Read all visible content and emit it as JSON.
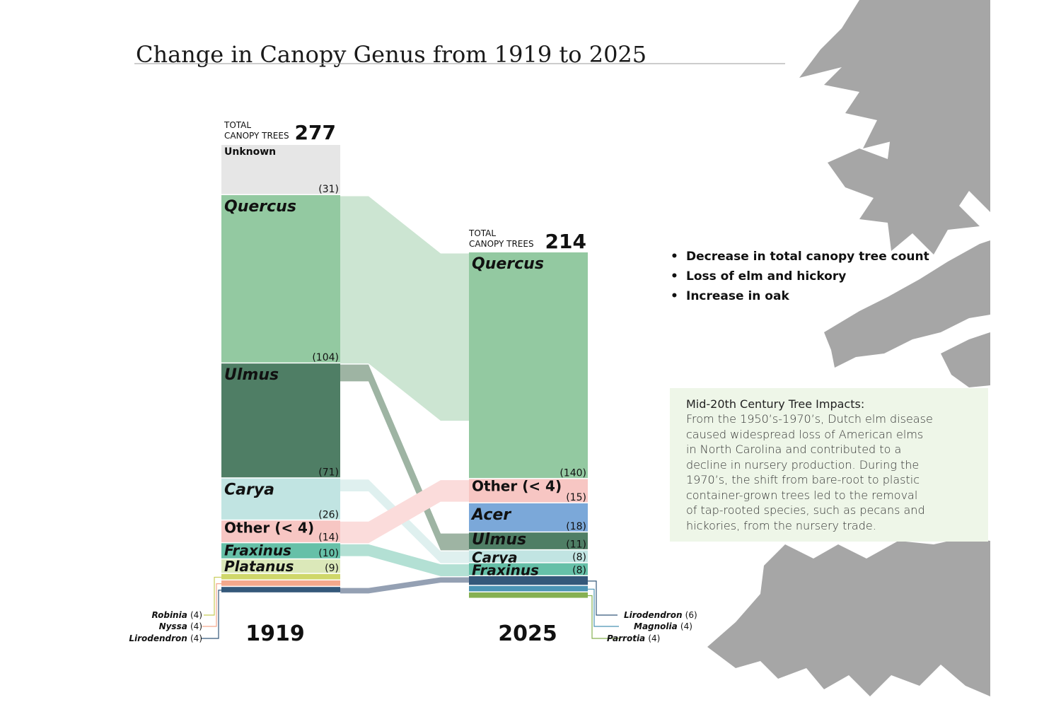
{
  "page_title": "Change in Canopy Genus from 1919 to 2025",
  "chart_data": {
    "type": "sankey",
    "title": "Change in Canopy Genus from 1919 to 2025",
    "total_label_line1": "TOTAL",
    "total_label_line2": "CANOPY TREES",
    "columns": [
      {
        "key": "y1919",
        "year": "1919",
        "total": 277,
        "total_text": "277",
        "segments": [
          {
            "key": "unknown",
            "label": "Unknown",
            "value": 31,
            "count_text": "(31)",
            "color": "#e6e6e6",
            "show_label": true,
            "show_count": true
          },
          {
            "key": "quercus",
            "label": "Quercus",
            "value": 104,
            "count_text": "(104)",
            "color": "#93c9a1",
            "show_label": true,
            "show_count": true
          },
          {
            "key": "ulmus",
            "label": "Ulmus",
            "value": 71,
            "count_text": "(71)",
            "color": "#4f7e65",
            "show_label": true,
            "show_count": true
          },
          {
            "key": "carya",
            "label": "Carya",
            "value": 26,
            "count_text": "(26)",
            "color": "#c1e4e2",
            "show_label": true,
            "show_count": true
          },
          {
            "key": "other",
            "label": "Other (< 4)",
            "value": 14,
            "count_text": "(14)",
            "color": "#f7c6c3",
            "show_label": true,
            "show_count": true
          },
          {
            "key": "fraxinus",
            "label": "Fraxinus",
            "value": 10,
            "count_text": "(10)",
            "color": "#66c0a8",
            "show_label": true,
            "show_count": true
          },
          {
            "key": "platanus",
            "label": "Platanus",
            "value": 9,
            "count_text": "(9)",
            "color": "#dbe8b9",
            "show_label": true,
            "show_count": true
          },
          {
            "key": "robinia",
            "label": "Robinia",
            "value": 4,
            "count_text": "(4)",
            "color": "#cfd76a",
            "show_label": false,
            "show_count": false
          },
          {
            "key": "nyssa",
            "label": "Nyssa",
            "value": 4,
            "count_text": "(4)",
            "color": "#f4a88c",
            "show_label": false,
            "show_count": false
          },
          {
            "key": "lirodendron",
            "label": "Lirodendron",
            "value": 4,
            "count_text": "(4)",
            "color": "#34587a",
            "show_label": false,
            "show_count": false
          }
        ],
        "callouts": [
          {
            "segment": "robinia",
            "label": "Robinia",
            "count_text": "(4)",
            "color": "#c7cc57"
          },
          {
            "segment": "nyssa",
            "label": "Nyssa",
            "count_text": "(4)",
            "color": "#f4a88c"
          },
          {
            "segment": "lirodendron",
            "label": "Lirodendron",
            "count_text": "(4)",
            "color": "#34587a"
          }
        ]
      },
      {
        "key": "y2025",
        "year": "2025",
        "total": 214,
        "total_text": "214",
        "segments": [
          {
            "key": "quercus",
            "label": "Quercus",
            "value": 140,
            "count_text": "(140)",
            "color": "#93c9a1",
            "show_label": true,
            "show_count": true
          },
          {
            "key": "other",
            "label": "Other (< 4)",
            "value": 15,
            "count_text": "(15)",
            "color": "#f7c6c3",
            "show_label": true,
            "show_count": true
          },
          {
            "key": "acer",
            "label": "Acer",
            "value": 18,
            "count_text": "(18)",
            "color": "#7ba8d9",
            "show_label": true,
            "show_count": true
          },
          {
            "key": "ulmus",
            "label": "Ulmus",
            "value": 11,
            "count_text": "(11)",
            "color": "#4f7e65",
            "show_label": true,
            "show_count": true
          },
          {
            "key": "carya",
            "label": "Carya",
            "value": 8,
            "count_text": "(8)",
            "color": "#c1e4e2",
            "show_label": true,
            "show_count": true
          },
          {
            "key": "fraxinus",
            "label": "Fraxinus",
            "value": 8,
            "count_text": "(8)",
            "color": "#66c0a8",
            "show_label": true,
            "show_count": true
          },
          {
            "key": "lirodendron",
            "label": "Lirodendron",
            "value": 6,
            "count_text": "(6)",
            "color": "#34587a",
            "show_label": false,
            "show_count": false
          },
          {
            "key": "magnolia",
            "label": "Magnolia",
            "value": 4,
            "count_text": "(4)",
            "color": "#4b94b5",
            "show_label": false,
            "show_count": false
          },
          {
            "key": "parrotia",
            "label": "Parrotia",
            "value": 4,
            "count_text": "(4)",
            "color": "#86b052",
            "show_label": false,
            "show_count": false
          }
        ],
        "callouts": [
          {
            "segment": "lirodendron",
            "label": "Lirodendron",
            "count_text": "(6)",
            "color": "#34587a"
          },
          {
            "segment": "magnolia",
            "label": "Magnolia",
            "count_text": "(4)",
            "color": "#4b94b5"
          },
          {
            "segment": "parrotia",
            "label": "Parrotia",
            "count_text": "(4)",
            "color": "#86b052"
          }
        ]
      }
    ],
    "flows": [
      {
        "source": "quercus",
        "target": "quercus",
        "value": 104,
        "color": "#cce5d2"
      },
      {
        "source": "ulmus",
        "target": "ulmus",
        "value": 11,
        "color": "#9eb4a3"
      },
      {
        "source": "carya",
        "target": "carya",
        "value": 8,
        "color": "#dff0ef"
      },
      {
        "source": "other",
        "target": "other",
        "value": 14,
        "color": "#fbdcdb"
      },
      {
        "source": "fraxinus",
        "target": "fraxinus",
        "value": 8,
        "color": "#b3e0d4"
      },
      {
        "source": "lirodendron",
        "target": "lirodendron",
        "value": 4,
        "color": "#94a0b3"
      }
    ]
  },
  "bullets": [
    "Decrease in total canopy tree count",
    "Loss of elm and hickory",
    "Increase in oak"
  ],
  "info_box": {
    "heading": "Mid-20th Century Tree Impacts:",
    "lines": [
      "From the 1950’s-1970’s, Dutch elm disease",
      "caused widespread loss of American elms",
      "in North Carolina and contributed to a",
      "decline in nursery production. During the",
      "1970’s, the shift from bare-root to plastic",
      "container-grown trees led to the removal",
      "of tap-rooted species, such as pecans and",
      "hickories, from the nursery trade."
    ],
    "background": "#eef6e8"
  },
  "colors": {
    "leaf": "#a6a6a6",
    "rule": "#9a9a9a"
  }
}
